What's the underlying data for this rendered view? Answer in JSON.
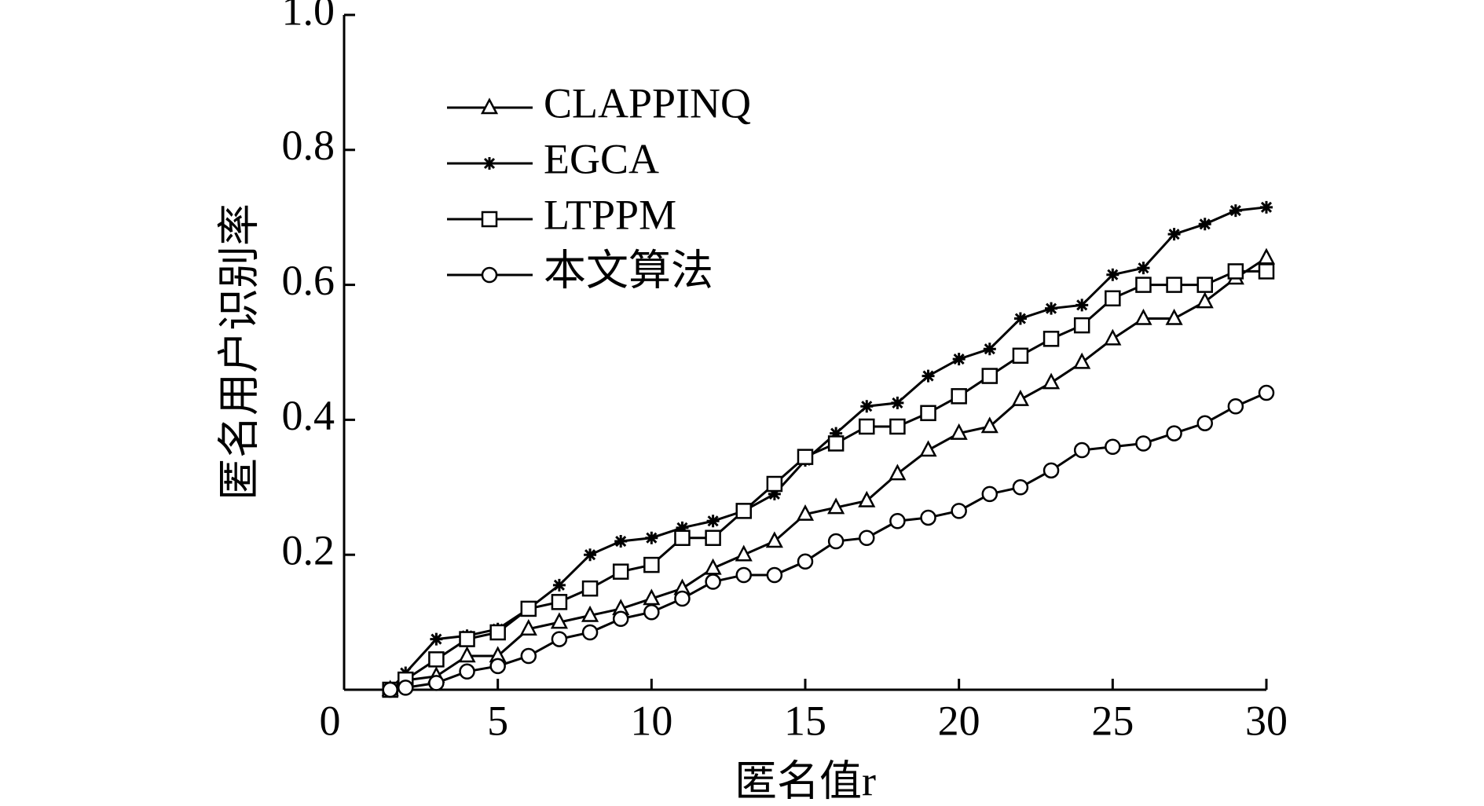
{
  "chart_data": {
    "type": "line",
    "xlabel": "匿名值r",
    "ylabel": "匿名用户识别率",
    "x": [
      1.5,
      2,
      3,
      4,
      5,
      6,
      7,
      8,
      9,
      10,
      11,
      12,
      13,
      14,
      15,
      16,
      17,
      18,
      19,
      20,
      21,
      22,
      23,
      24,
      25,
      26,
      27,
      28,
      29,
      30
    ],
    "series": [
      {
        "name": "CLAPPINQ",
        "color": "#000000",
        "marker": "triangle",
        "values": [
          0,
          0.014,
          0.02,
          0.05,
          0.05,
          0.09,
          0.1,
          0.11,
          0.12,
          0.135,
          0.15,
          0.18,
          0.2,
          0.22,
          0.26,
          0.27,
          0.28,
          0.32,
          0.355,
          0.38,
          0.39,
          0.43,
          0.455,
          0.485,
          0.52,
          0.55,
          0.55,
          0.575,
          0.61,
          0.64
        ]
      },
      {
        "name": "EGCA",
        "color": "#000000",
        "marker": "star",
        "values": [
          0,
          0.025,
          0.075,
          0.08,
          0.09,
          0.12,
          0.155,
          0.2,
          0.22,
          0.225,
          0.24,
          0.25,
          0.265,
          0.29,
          0.34,
          0.38,
          0.42,
          0.425,
          0.465,
          0.49,
          0.505,
          0.55,
          0.565,
          0.57,
          0.615,
          0.625,
          0.675,
          0.69,
          0.71,
          0.715
        ]
      },
      {
        "name": "LTPPM",
        "color": "#000000",
        "marker": "square",
        "values": [
          0,
          0.015,
          0.045,
          0.075,
          0.085,
          0.12,
          0.13,
          0.15,
          0.175,
          0.185,
          0.225,
          0.225,
          0.265,
          0.305,
          0.345,
          0.365,
          0.39,
          0.39,
          0.41,
          0.435,
          0.465,
          0.495,
          0.52,
          0.54,
          0.58,
          0.6,
          0.6,
          0.6,
          0.62,
          0.62
        ]
      },
      {
        "name": "本文算法",
        "color": "#000000",
        "marker": "circle",
        "values": [
          0,
          0.003,
          0.01,
          0.027,
          0.035,
          0.05,
          0.075,
          0.085,
          0.105,
          0.115,
          0.135,
          0.16,
          0.17,
          0.17,
          0.19,
          0.22,
          0.225,
          0.25,
          0.255,
          0.265,
          0.29,
          0.3,
          0.325,
          0.355,
          0.36,
          0.365,
          0.38,
          0.395,
          0.42,
          0.44
        ]
      }
    ],
    "xlim": [
      0,
      30
    ],
    "xticks": [
      0,
      5,
      10,
      15,
      20,
      25,
      30
    ],
    "ylim": [
      0,
      1
    ],
    "yticks": [
      0.2,
      0.4,
      0.6,
      0.8,
      {
        "value": 1,
        "label": "1.0"
      }
    ],
    "legend": "upper left",
    "grid": false
  }
}
